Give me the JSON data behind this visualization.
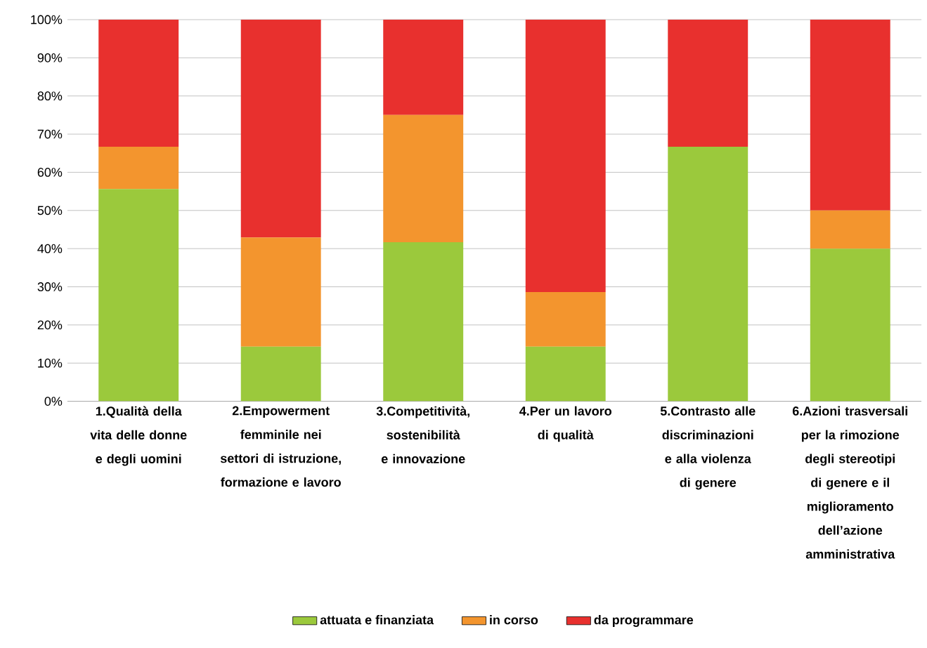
{
  "chart_data": {
    "type": "bar",
    "stacked": true,
    "categories": [
      "1.Qualità della vita delle donne e degli uomini",
      "2.Empowerment femminile nei settori di istruzione, formazione e lavoro",
      "3.Competitività, sostenibilità e innovazione",
      "4.Per un lavoro di qualità",
      "5.Contrasto alle discriminazioni e alla violenza di genere",
      "6.Azioni trasversali per la rimozione degli stereotipi di genere e il miglioramento dell’azione amministrativa"
    ],
    "series": [
      {
        "name": "attuata e finanziata",
        "color": "#9bc93c",
        "values": [
          55.6,
          14.3,
          41.7,
          14.3,
          66.7,
          40
        ]
      },
      {
        "name": "in corso",
        "color": "#f3952e",
        "values": [
          11.1,
          28.6,
          33.3,
          14.3,
          0,
          10
        ]
      },
      {
        "name": "da programmare",
        "color": "#e8302e",
        "values": [
          33.3,
          57.1,
          25,
          71.4,
          33.3,
          50
        ]
      }
    ],
    "ylim": [
      0,
      100
    ],
    "yticks": [
      {
        "value": 0,
        "label": "0%"
      },
      {
        "value": 10,
        "label": "10%"
      },
      {
        "value": 20,
        "label": "20%"
      },
      {
        "value": 30,
        "label": "30%"
      },
      {
        "value": 40,
        "label": "40%"
      },
      {
        "value": 50,
        "label": "50%"
      },
      {
        "value": 60,
        "label": "60%"
      },
      {
        "value": 70,
        "label": "70%"
      },
      {
        "value": 80,
        "label": "80%"
      },
      {
        "value": 90,
        "label": "90%"
      },
      {
        "value": 100,
        "label": "100%"
      }
    ],
    "grid": "y",
    "legend": "bottom"
  }
}
